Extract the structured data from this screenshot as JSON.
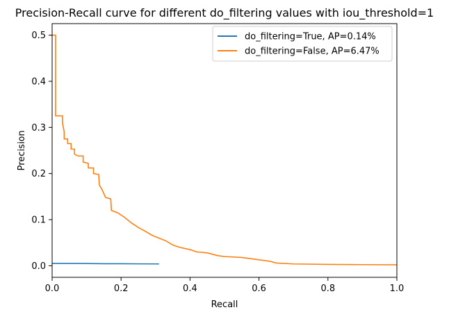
{
  "chart_data": {
    "type": "line",
    "title": "Precision-Recall curve for different do_filtering values with iou_threshold=1",
    "xlabel": "Recall",
    "ylabel": "Precision",
    "xlim": [
      0.0,
      1.0
    ],
    "ylim": [
      -0.025,
      0.525
    ],
    "x_ticks": [
      "0.0",
      "0.2",
      "0.4",
      "0.6",
      "0.8",
      "1.0"
    ],
    "y_ticks": [
      "0.0",
      "0.1",
      "0.2",
      "0.3",
      "0.4",
      "0.5"
    ],
    "grid": false,
    "legend_position": "top-right",
    "series": [
      {
        "name": "do_filtering=True, AP=0.14%",
        "color": "#1f77b4",
        "points": [
          [
            0.0,
            0.005
          ],
          [
            0.08,
            0.005
          ],
          [
            0.15,
            0.0045
          ],
          [
            0.2,
            0.0045
          ],
          [
            0.25,
            0.0042
          ],
          [
            0.31,
            0.004
          ]
        ]
      },
      {
        "name": "do_filtering=False, AP=6.47%",
        "color": "#ff7f0e",
        "points": [
          [
            0.0,
            0.5
          ],
          [
            0.01,
            0.5
          ],
          [
            0.01,
            0.325
          ],
          [
            0.03,
            0.325
          ],
          [
            0.03,
            0.31
          ],
          [
            0.035,
            0.29
          ],
          [
            0.035,
            0.275
          ],
          [
            0.045,
            0.275
          ],
          [
            0.045,
            0.265
          ],
          [
            0.055,
            0.265
          ],
          [
            0.055,
            0.253
          ],
          [
            0.065,
            0.253
          ],
          [
            0.065,
            0.242
          ],
          [
            0.075,
            0.238
          ],
          [
            0.09,
            0.238
          ],
          [
            0.09,
            0.225
          ],
          [
            0.105,
            0.222
          ],
          [
            0.105,
            0.212
          ],
          [
            0.12,
            0.212
          ],
          [
            0.12,
            0.2
          ],
          [
            0.135,
            0.198
          ],
          [
            0.137,
            0.175
          ],
          [
            0.145,
            0.165
          ],
          [
            0.155,
            0.148
          ],
          [
            0.17,
            0.145
          ],
          [
            0.172,
            0.12
          ],
          [
            0.19,
            0.115
          ],
          [
            0.21,
            0.105
          ],
          [
            0.23,
            0.093
          ],
          [
            0.25,
            0.083
          ],
          [
            0.27,
            0.075
          ],
          [
            0.29,
            0.066
          ],
          [
            0.31,
            0.06
          ],
          [
            0.33,
            0.054
          ],
          [
            0.35,
            0.045
          ],
          [
            0.37,
            0.04
          ],
          [
            0.4,
            0.035
          ],
          [
            0.42,
            0.03
          ],
          [
            0.45,
            0.028
          ],
          [
            0.48,
            0.022
          ],
          [
            0.5,
            0.02
          ],
          [
            0.55,
            0.018
          ],
          [
            0.6,
            0.013
          ],
          [
            0.63,
            0.01
          ],
          [
            0.65,
            0.006
          ],
          [
            0.7,
            0.004
          ],
          [
            0.8,
            0.003
          ],
          [
            0.9,
            0.0025
          ],
          [
            1.0,
            0.002
          ]
        ]
      }
    ]
  }
}
